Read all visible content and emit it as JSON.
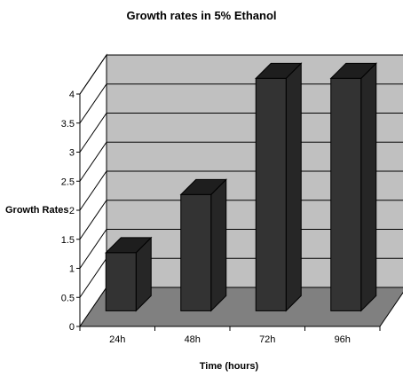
{
  "chart_data": {
    "type": "bar",
    "title": "Growth rates in 5% Ethanol",
    "xlabel": "Time (hours)",
    "ylabel": "Growth Rates",
    "categories": [
      "24h",
      "48h",
      "72h",
      "96h"
    ],
    "values": [
      1.0,
      2.0,
      4.0,
      4.0
    ],
    "ylim": [
      0,
      4
    ],
    "yticks": [
      "0",
      "0.5",
      "1",
      "1.5",
      "2",
      "2.5",
      "3",
      "3.5",
      "4"
    ],
    "grid": true,
    "style": "3d",
    "colors": {
      "bar_front": "#333333",
      "bar_top": "#1e1e1e",
      "bar_side": "#262626",
      "back_wall": "#c0c0c0",
      "side_wall": "#ffffff",
      "floor": "#808080"
    }
  }
}
